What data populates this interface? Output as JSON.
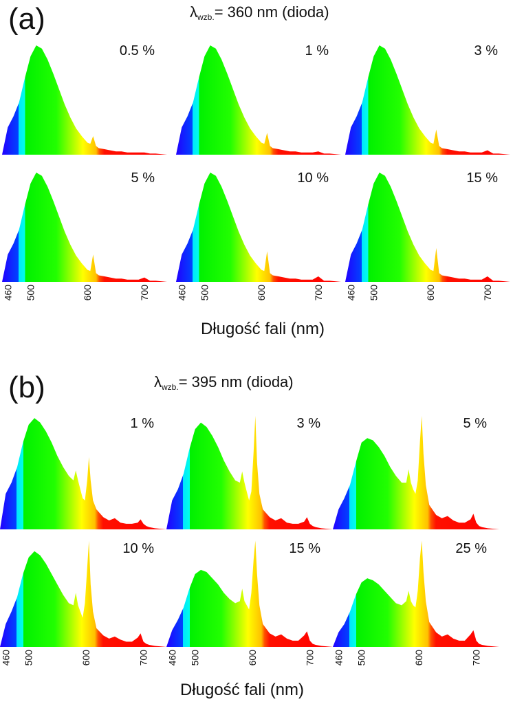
{
  "figure": {
    "x_axis_label": "Długość fali (nm)",
    "tick_labels": [
      "460",
      "500",
      "600",
      "700"
    ]
  },
  "panels": [
    {
      "label": "(a)",
      "excitation_symbol": "λ",
      "excitation_subscript": "wzb.",
      "excitation_text": "= 360 nm (dioda)",
      "excitation_nm": 360,
      "concentrations": [
        "0.5 %",
        "1 %",
        "3 %",
        "5 %",
        "10 %",
        "15 %"
      ]
    },
    {
      "label": "(b)",
      "excitation_symbol": "λ",
      "excitation_subscript": "wzb.",
      "excitation_text": "= 395 nm (dioda)",
      "excitation_nm": 395,
      "concentrations": [
        "1 %",
        "3 %",
        "5 %",
        "10 %",
        "15 %",
        "25 %"
      ]
    }
  ],
  "chart_data": [
    {
      "type": "area",
      "title": "(a) λwzb.= 360 nm (dioda)",
      "xlabel": "Długość fali (nm)",
      "ylabel": "",
      "xlim": [
        450,
        740
      ],
      "ylim": [
        0,
        1.05
      ],
      "xticks": [
        460,
        500,
        600,
        700
      ],
      "gradient": "wavelength rainbow",
      "series": [
        {
          "name": "0.5 %",
          "x": [
            450,
            460,
            470,
            480,
            490,
            500,
            510,
            520,
            530,
            540,
            550,
            560,
            570,
            580,
            590,
            600,
            605,
            610,
            615,
            620,
            630,
            640,
            650,
            660,
            670,
            680,
            690,
            700,
            710,
            720,
            740
          ],
          "y": [
            0.0,
            0.25,
            0.35,
            0.48,
            0.7,
            0.9,
            1.0,
            0.97,
            0.87,
            0.74,
            0.6,
            0.46,
            0.34,
            0.24,
            0.17,
            0.11,
            0.1,
            0.17,
            0.08,
            0.06,
            0.05,
            0.04,
            0.03,
            0.03,
            0.02,
            0.02,
            0.02,
            0.02,
            0.01,
            0.01,
            0.0
          ]
        },
        {
          "name": "1 %",
          "x": [
            450,
            460,
            470,
            480,
            490,
            500,
            510,
            520,
            530,
            540,
            550,
            560,
            570,
            580,
            590,
            600,
            605,
            610,
            615,
            620,
            630,
            640,
            650,
            660,
            670,
            680,
            690,
            700,
            710,
            720,
            740
          ],
          "y": [
            0.0,
            0.25,
            0.35,
            0.48,
            0.7,
            0.9,
            1.0,
            0.97,
            0.87,
            0.74,
            0.6,
            0.46,
            0.34,
            0.24,
            0.17,
            0.11,
            0.1,
            0.2,
            0.08,
            0.06,
            0.05,
            0.04,
            0.03,
            0.03,
            0.02,
            0.02,
            0.02,
            0.03,
            0.01,
            0.01,
            0.0
          ]
        },
        {
          "name": "3 %",
          "x": [
            450,
            460,
            470,
            480,
            490,
            500,
            510,
            520,
            530,
            540,
            550,
            560,
            570,
            580,
            590,
            600,
            605,
            610,
            615,
            620,
            630,
            640,
            650,
            660,
            670,
            680,
            690,
            700,
            710,
            720,
            740
          ],
          "y": [
            0.0,
            0.25,
            0.35,
            0.48,
            0.7,
            0.9,
            1.0,
            0.97,
            0.87,
            0.74,
            0.6,
            0.46,
            0.34,
            0.24,
            0.17,
            0.11,
            0.1,
            0.23,
            0.08,
            0.06,
            0.05,
            0.04,
            0.03,
            0.03,
            0.02,
            0.02,
            0.02,
            0.04,
            0.01,
            0.01,
            0.0
          ]
        },
        {
          "name": "5 %",
          "x": [
            450,
            460,
            470,
            480,
            490,
            500,
            510,
            520,
            530,
            540,
            550,
            560,
            570,
            580,
            590,
            600,
            605,
            610,
            615,
            620,
            630,
            640,
            650,
            660,
            670,
            680,
            690,
            700,
            710,
            720,
            740
          ],
          "y": [
            0.0,
            0.25,
            0.35,
            0.48,
            0.7,
            0.9,
            1.0,
            0.97,
            0.87,
            0.74,
            0.6,
            0.46,
            0.34,
            0.24,
            0.17,
            0.11,
            0.1,
            0.25,
            0.08,
            0.06,
            0.05,
            0.04,
            0.03,
            0.03,
            0.02,
            0.02,
            0.02,
            0.04,
            0.01,
            0.01,
            0.0
          ]
        },
        {
          "name": "10 %",
          "x": [
            450,
            460,
            470,
            480,
            490,
            500,
            510,
            520,
            530,
            540,
            550,
            560,
            570,
            580,
            590,
            600,
            605,
            610,
            615,
            620,
            630,
            640,
            650,
            660,
            670,
            680,
            690,
            700,
            710,
            720,
            740
          ],
          "y": [
            0.0,
            0.25,
            0.35,
            0.48,
            0.7,
            0.9,
            1.0,
            0.97,
            0.87,
            0.74,
            0.6,
            0.46,
            0.34,
            0.24,
            0.17,
            0.11,
            0.1,
            0.28,
            0.08,
            0.06,
            0.05,
            0.04,
            0.03,
            0.03,
            0.02,
            0.02,
            0.02,
            0.05,
            0.01,
            0.01,
            0.0
          ]
        },
        {
          "name": "15 %",
          "x": [
            450,
            460,
            470,
            480,
            490,
            500,
            510,
            520,
            530,
            540,
            550,
            560,
            570,
            580,
            590,
            600,
            605,
            610,
            615,
            620,
            630,
            640,
            650,
            660,
            670,
            680,
            690,
            700,
            710,
            720,
            740
          ],
          "y": [
            0.0,
            0.25,
            0.35,
            0.48,
            0.7,
            0.9,
            1.0,
            0.97,
            0.87,
            0.74,
            0.6,
            0.46,
            0.34,
            0.24,
            0.17,
            0.11,
            0.1,
            0.31,
            0.08,
            0.06,
            0.05,
            0.04,
            0.03,
            0.03,
            0.02,
            0.02,
            0.02,
            0.05,
            0.01,
            0.01,
            0.0
          ]
        }
      ]
    },
    {
      "type": "area",
      "title": "(b) λwzb.= 395 nm (dioda)",
      "xlabel": "Długość fali (nm)",
      "ylabel": "",
      "xlim": [
        450,
        740
      ],
      "ylim": [
        0,
        1.05
      ],
      "xticks": [
        460,
        500,
        600,
        700
      ],
      "gradient": "wavelength rainbow",
      "series": [
        {
          "name": "1 %",
          "x": [
            450,
            460,
            470,
            480,
            490,
            500,
            510,
            520,
            530,
            540,
            550,
            560,
            570,
            578,
            582,
            586,
            590,
            594,
            598,
            602,
            605,
            608,
            612,
            618,
            630,
            640,
            650,
            660,
            670,
            680,
            690,
            695,
            700,
            705,
            710,
            720,
            740
          ],
          "y": [
            0.0,
            0.32,
            0.42,
            0.56,
            0.78,
            0.94,
            1.0,
            0.96,
            0.88,
            0.78,
            0.66,
            0.56,
            0.48,
            0.44,
            0.53,
            0.44,
            0.36,
            0.28,
            0.26,
            0.44,
            0.65,
            0.44,
            0.26,
            0.18,
            0.11,
            0.08,
            0.1,
            0.06,
            0.05,
            0.05,
            0.06,
            0.09,
            0.05,
            0.03,
            0.02,
            0.01,
            0.0
          ]
        },
        {
          "name": "3 %",
          "x": [
            450,
            460,
            470,
            480,
            490,
            500,
            510,
            520,
            530,
            540,
            550,
            560,
            570,
            578,
            582,
            586,
            590,
            594,
            598,
            602,
            605,
            608,
            612,
            618,
            630,
            640,
            650,
            660,
            670,
            680,
            690,
            695,
            700,
            705,
            710,
            720,
            740
          ],
          "y": [
            0.0,
            0.26,
            0.36,
            0.5,
            0.72,
            0.9,
            0.96,
            0.92,
            0.84,
            0.74,
            0.62,
            0.52,
            0.44,
            0.42,
            0.52,
            0.42,
            0.34,
            0.26,
            0.34,
            0.7,
            1.02,
            0.6,
            0.32,
            0.18,
            0.11,
            0.08,
            0.1,
            0.06,
            0.05,
            0.05,
            0.07,
            0.11,
            0.05,
            0.03,
            0.02,
            0.01,
            0.0
          ]
        },
        {
          "name": "5 %",
          "x": [
            450,
            460,
            470,
            480,
            490,
            500,
            510,
            520,
            530,
            540,
            550,
            560,
            570,
            578,
            582,
            586,
            590,
            594,
            598,
            602,
            605,
            608,
            612,
            618,
            630,
            640,
            650,
            660,
            670,
            680,
            690,
            695,
            700,
            705,
            710,
            720,
            740
          ],
          "y": [
            0.0,
            0.18,
            0.28,
            0.4,
            0.6,
            0.78,
            0.82,
            0.8,
            0.74,
            0.66,
            0.56,
            0.48,
            0.42,
            0.42,
            0.54,
            0.42,
            0.36,
            0.32,
            0.44,
            0.8,
            1.02,
            0.68,
            0.4,
            0.22,
            0.13,
            0.1,
            0.12,
            0.08,
            0.06,
            0.06,
            0.09,
            0.14,
            0.06,
            0.03,
            0.02,
            0.01,
            0.0
          ]
        },
        {
          "name": "10 %",
          "x": [
            450,
            460,
            470,
            480,
            490,
            500,
            510,
            520,
            530,
            540,
            550,
            560,
            570,
            578,
            582,
            586,
            590,
            594,
            598,
            602,
            605,
            608,
            612,
            618,
            630,
            640,
            650,
            660,
            670,
            680,
            690,
            695,
            700,
            705,
            710,
            720,
            740
          ],
          "y": [
            0.0,
            0.22,
            0.34,
            0.48,
            0.7,
            0.86,
            0.92,
            0.88,
            0.8,
            0.7,
            0.6,
            0.5,
            0.42,
            0.4,
            0.52,
            0.4,
            0.34,
            0.28,
            0.42,
            0.76,
            1.02,
            0.6,
            0.34,
            0.18,
            0.11,
            0.08,
            0.1,
            0.07,
            0.05,
            0.05,
            0.09,
            0.13,
            0.05,
            0.03,
            0.02,
            0.01,
            0.0
          ]
        },
        {
          "name": "15 %",
          "x": [
            450,
            460,
            470,
            480,
            490,
            500,
            510,
            520,
            530,
            540,
            550,
            560,
            570,
            578,
            582,
            586,
            590,
            594,
            598,
            602,
            605,
            608,
            612,
            618,
            630,
            640,
            650,
            660,
            670,
            680,
            690,
            695,
            700,
            705,
            710,
            720,
            740
          ],
          "y": [
            0.0,
            0.16,
            0.26,
            0.38,
            0.56,
            0.7,
            0.74,
            0.72,
            0.66,
            0.6,
            0.52,
            0.46,
            0.42,
            0.44,
            0.56,
            0.44,
            0.4,
            0.36,
            0.52,
            0.84,
            1.02,
            0.7,
            0.4,
            0.22,
            0.13,
            0.1,
            0.12,
            0.08,
            0.06,
            0.06,
            0.11,
            0.15,
            0.06,
            0.03,
            0.02,
            0.01,
            0.0
          ]
        },
        {
          "name": "25 %",
          "x": [
            450,
            460,
            470,
            480,
            490,
            500,
            510,
            520,
            530,
            540,
            550,
            560,
            570,
            578,
            582,
            586,
            590,
            594,
            598,
            602,
            605,
            608,
            612,
            618,
            630,
            640,
            650,
            660,
            670,
            680,
            690,
            695,
            700,
            705,
            710,
            720,
            740
          ],
          "y": [
            0.0,
            0.14,
            0.22,
            0.34,
            0.5,
            0.62,
            0.66,
            0.64,
            0.6,
            0.54,
            0.48,
            0.42,
            0.4,
            0.44,
            0.54,
            0.44,
            0.4,
            0.38,
            0.54,
            0.86,
            1.02,
            0.72,
            0.44,
            0.24,
            0.14,
            0.1,
            0.12,
            0.08,
            0.06,
            0.06,
            0.12,
            0.16,
            0.06,
            0.03,
            0.02,
            0.01,
            0.0
          ]
        }
      ]
    }
  ]
}
